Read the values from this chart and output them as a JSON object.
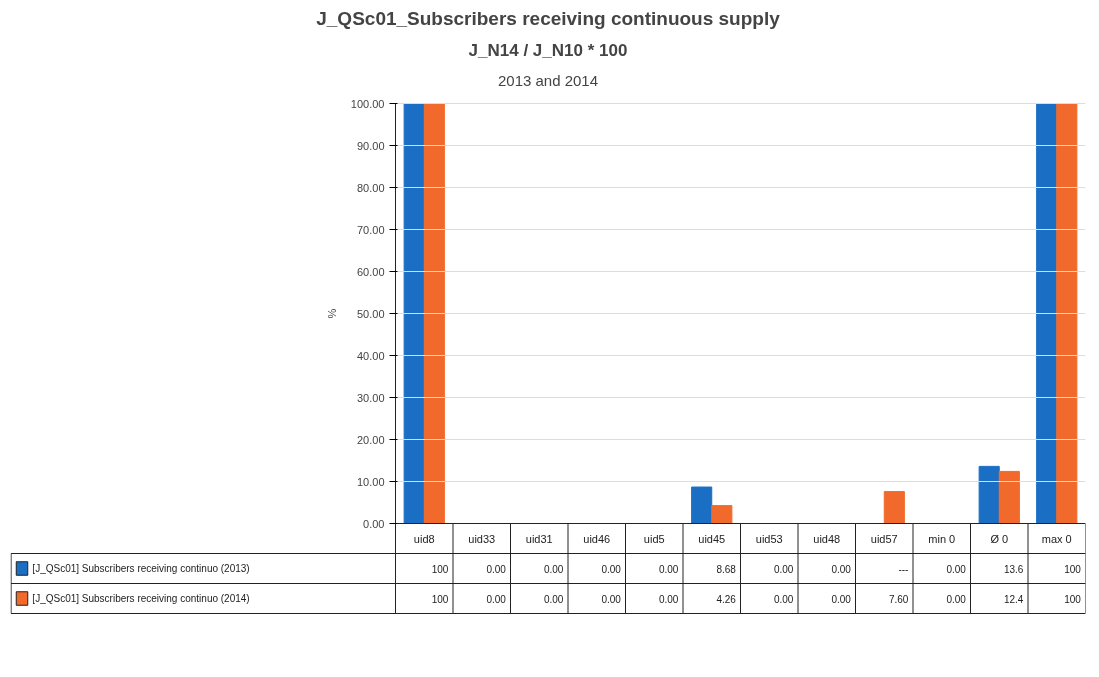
{
  "chart_data": {
    "type": "bar",
    "title": "J_QSc01_Subscribers receiving continuous supply",
    "subtitle": "J_N14 / J_N10 * 100",
    "annotations": [
      "2013 and 2014"
    ],
    "ylabel": "%",
    "categories": [
      "uid8",
      "uid33",
      "uid31",
      "uid46",
      "uid5",
      "uid45",
      "uid53",
      "uid48",
      "uid57",
      "min 0",
      "Ø 0",
      "max 0"
    ],
    "series": [
      {
        "name": "[J_QSc01] Subscribers receiving continuo (2013)",
        "color": "#1a6fc4",
        "values": [
          100,
          0,
          0,
          0,
          0,
          8.68,
          0,
          0,
          null,
          0,
          13.6,
          100
        ],
        "value_labels": [
          "100",
          "0.00",
          "0.00",
          "0.00",
          "0.00",
          "8.68",
          "0.00",
          "0.00",
          "---",
          "0.00",
          "13.6",
          "100"
        ]
      },
      {
        "name": "[J_QSc01] Subscribers receiving continuo (2014)",
        "color": "#f26a2b",
        "values": [
          100,
          0,
          0,
          0,
          0,
          4.26,
          0,
          0,
          7.6,
          0,
          12.4,
          100
        ],
        "value_labels": [
          "100",
          "0.00",
          "0.00",
          "0.00",
          "0.00",
          "4.26",
          "0.00",
          "0.00",
          "7.60",
          "0.00",
          "12.4",
          "100"
        ]
      }
    ],
    "ylim": [
      0,
      100
    ],
    "yticks": [
      {
        "value": 0,
        "label": "0.00"
      },
      {
        "value": 10,
        "label": "10.00"
      },
      {
        "value": 20,
        "label": "20.00"
      },
      {
        "value": 30,
        "label": "30.00"
      },
      {
        "value": 40,
        "label": "40.00"
      },
      {
        "value": 50,
        "label": "50.00"
      },
      {
        "value": 60,
        "label": "60.00"
      },
      {
        "value": 70,
        "label": "70.00"
      },
      {
        "value": 80,
        "label": "80.00"
      },
      {
        "value": 90,
        "label": "90.00"
      },
      {
        "value": 100,
        "label": "100.00"
      }
    ],
    "grid": "y",
    "legend": "bottom"
  }
}
